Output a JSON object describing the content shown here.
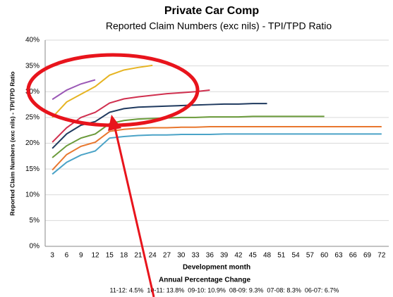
{
  "chart_data": {
    "type": "line",
    "title": "Private Car Comp",
    "subtitle": "Reported Claim Numbers (exc nils) - TPI/TPD Ratio",
    "y_label": "Reported Claim Numbers (exc nils) - TPI/TPD Ratio",
    "x_label": "Development month",
    "annotations": [
      "Annual Percentage Change",
      "11-12: 4.5%  10-11: 13.8%  09-10: 10.9%  08-09: 9.3%  07-08: 8.3%  06-07: 6.7%"
    ],
    "categories": [
      "3",
      "6",
      "9",
      "12",
      "15",
      "18",
      "21",
      "24",
      "27",
      "30",
      "33",
      "36",
      "39",
      "42",
      "45",
      "48",
      "51",
      "54",
      "57",
      "60",
      "63",
      "66",
      "69",
      "72"
    ],
    "ylim": [
      0,
      40
    ],
    "yticks": [
      {
        "value": 0,
        "label": "0%"
      },
      {
        "value": 5,
        "label": "5%"
      },
      {
        "value": 10,
        "label": "10%"
      },
      {
        "value": 15,
        "label": "15%"
      },
      {
        "value": 20,
        "label": "20%"
      },
      {
        "value": 25,
        "label": "25%"
      },
      {
        "value": 30,
        "label": "30%"
      },
      {
        "value": 35,
        "label": "35%"
      },
      {
        "value": 40,
        "label": "40%"
      }
    ],
    "grid": true,
    "series": [
      {
        "color": "#9b59b6",
        "values": [
          28.5,
          30.3,
          31.5,
          32.3,
          null,
          null,
          null,
          null,
          null,
          null,
          null,
          null,
          null,
          null,
          null,
          null,
          null,
          null,
          null,
          null,
          null,
          null,
          null,
          null
        ]
      },
      {
        "color": "#e6b422",
        "values": [
          25,
          28,
          29.5,
          31,
          33.2,
          34.2,
          34.7,
          35.1,
          null,
          null,
          null,
          null,
          null,
          null,
          null,
          null,
          null,
          null,
          null,
          null,
          null,
          null,
          null,
          null
        ]
      },
      {
        "color": "#d0304f",
        "values": [
          20.2,
          23,
          25,
          26,
          27.8,
          28.6,
          29,
          29.3,
          29.6,
          29.8,
          30,
          30.3,
          null,
          null,
          null,
          null,
          null,
          null,
          null,
          null,
          null,
          null,
          null,
          null
        ]
      },
      {
        "color": "#1f3a5f",
        "values": [
          19,
          21.8,
          23.5,
          24.2,
          26,
          26.7,
          27,
          27.1,
          27.2,
          27.3,
          27.4,
          27.5,
          27.6,
          27.6,
          27.7,
          27.7,
          null,
          null,
          null,
          null,
          null,
          null,
          null,
          null
        ]
      },
      {
        "color": "#6a9a3a",
        "values": [
          17.2,
          19.5,
          21,
          21.8,
          23.8,
          24.4,
          24.7,
          24.8,
          24.9,
          25,
          25,
          25.1,
          25.1,
          25.1,
          25.2,
          25.2,
          25.2,
          25.2,
          25.2,
          25.2,
          null,
          null,
          null,
          null
        ]
      },
      {
        "color": "#e8772e",
        "values": [
          14.8,
          17.8,
          19.4,
          20.2,
          22.3,
          22.7,
          22.9,
          23,
          23,
          23.1,
          23.1,
          23.2,
          23.2,
          23.2,
          23.2,
          23.2,
          23.2,
          23.2,
          23.2,
          23.2,
          23.2,
          23.2,
          23.2,
          23.2
        ]
      },
      {
        "color": "#4ba3c7",
        "values": [
          14,
          16.3,
          17.7,
          18.5,
          21,
          21.3,
          21.5,
          21.6,
          21.6,
          21.7,
          21.7,
          21.7,
          21.8,
          21.8,
          21.8,
          21.8,
          21.8,
          21.8,
          21.8,
          21.8,
          21.8,
          21.8,
          21.8,
          21.8
        ]
      }
    ]
  }
}
